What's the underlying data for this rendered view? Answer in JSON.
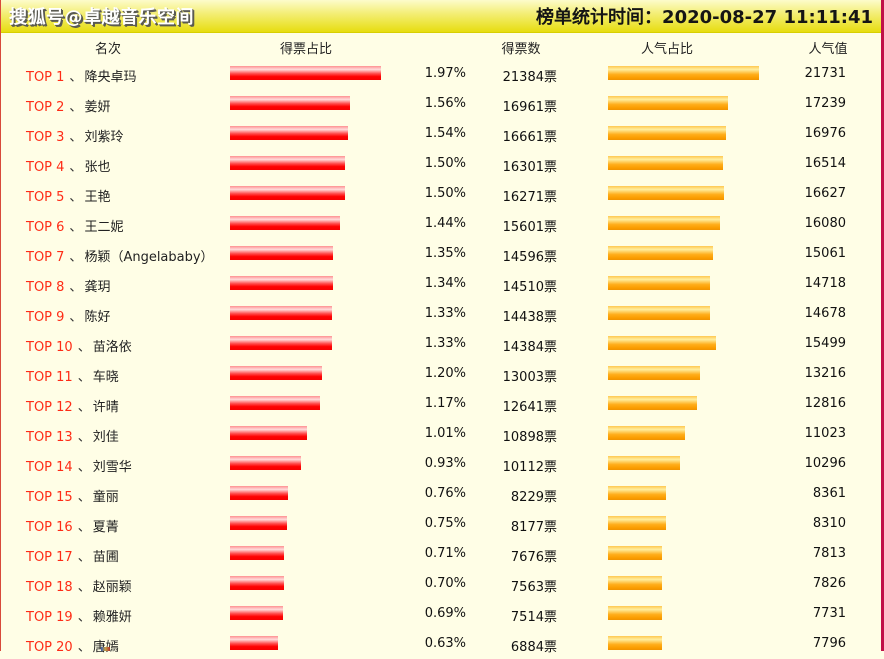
{
  "header": {
    "title": "搜狐号@卓越音乐空间",
    "stats_time": "榜单统计时间：2020-08-27 11:11:41"
  },
  "columns": {
    "rank": "名次",
    "vote_pct": "得票占比",
    "votes": "得票数",
    "pop_pct": "人气占比",
    "pop_value": "人气值"
  },
  "separator": "、",
  "colors": {
    "topbar_yellow": "#e7dd10",
    "background": "#fffee6",
    "rank_red": "#fe2c16",
    "vote_bar_red": "#ff0000",
    "pop_bar_orange": "#ffa500",
    "right_border": "#c01048"
  },
  "rows": [
    {
      "rank_label": "TOP 1",
      "name": "降央卓玛",
      "vote_pct_label": "1.97%",
      "votes_label": "21384票",
      "pop_value": 21731
    },
    {
      "rank_label": "TOP 2",
      "name": "姜妍",
      "vote_pct_label": "1.56%",
      "votes_label": "16961票",
      "pop_value": 17239
    },
    {
      "rank_label": "TOP 3",
      "name": "刘紫玲",
      "vote_pct_label": "1.54%",
      "votes_label": "16661票",
      "pop_value": 16976
    },
    {
      "rank_label": "TOP 4",
      "name": "张也",
      "vote_pct_label": "1.50%",
      "votes_label": "16301票",
      "pop_value": 16514
    },
    {
      "rank_label": "TOP 5",
      "name": "王艳",
      "vote_pct_label": "1.50%",
      "votes_label": "16271票",
      "pop_value": 16627
    },
    {
      "rank_label": "TOP 6",
      "name": "王二妮",
      "vote_pct_label": "1.44%",
      "votes_label": "15601票",
      "pop_value": 16080
    },
    {
      "rank_label": "TOP 7",
      "name": "杨颖（Angelababy）",
      "vote_pct_label": "1.35%",
      "votes_label": "14596票",
      "pop_value": 15061
    },
    {
      "rank_label": "TOP 8",
      "name": "龚玥",
      "vote_pct_label": "1.34%",
      "votes_label": "14510票",
      "pop_value": 14718
    },
    {
      "rank_label": "TOP 9",
      "name": "陈好",
      "vote_pct_label": "1.33%",
      "votes_label": "14438票",
      "pop_value": 14678
    },
    {
      "rank_label": "TOP 10",
      "name": "苗洛依",
      "vote_pct_label": "1.33%",
      "votes_label": "14384票",
      "pop_value": 15499
    },
    {
      "rank_label": "TOP 11",
      "name": "车晓",
      "vote_pct_label": "1.20%",
      "votes_label": "13003票",
      "pop_value": 13216
    },
    {
      "rank_label": "TOP 12",
      "name": "许晴",
      "vote_pct_label": "1.17%",
      "votes_label": "12641票",
      "pop_value": 12816
    },
    {
      "rank_label": "TOP 13",
      "name": "刘佳",
      "vote_pct_label": "1.01%",
      "votes_label": "10898票",
      "pop_value": 11023
    },
    {
      "rank_label": "TOP 14",
      "name": "刘雪华",
      "vote_pct_label": "0.93%",
      "votes_label": "10112票",
      "pop_value": 10296
    },
    {
      "rank_label": "TOP 15",
      "name": "童丽",
      "vote_pct_label": "0.76%",
      "votes_label": "8229票",
      "pop_value": 8361
    },
    {
      "rank_label": "TOP 16",
      "name": "夏菁",
      "vote_pct_label": "0.75%",
      "votes_label": "8177票",
      "pop_value": 8310
    },
    {
      "rank_label": "TOP 17",
      "name": "苗圃",
      "vote_pct_label": "0.71%",
      "votes_label": "7676票",
      "pop_value": 7813
    },
    {
      "rank_label": "TOP 18",
      "name": "赵丽颖",
      "vote_pct_label": "0.70%",
      "votes_label": "7563票",
      "pop_value": 7826
    },
    {
      "rank_label": "TOP 19",
      "name": "赖雅妍",
      "vote_pct_label": "0.69%",
      "votes_label": "7514票",
      "pop_value": 7731
    },
    {
      "rank_label": "TOP 20",
      "name": "唐嫣",
      "vote_pct_label": "0.63%",
      "votes_label": "6884票",
      "pop_value": 7796
    }
  ],
  "chart_data": {
    "type": "bar",
    "title": "榜单统计时间：2020-08-27 11:11:41",
    "categories": [
      "降央卓玛",
      "姜妍",
      "刘紫玲",
      "张也",
      "王艳",
      "王二妮",
      "杨颖（Angelababy）",
      "龚玥",
      "陈好",
      "苗洛依",
      "车晓",
      "许晴",
      "刘佳",
      "刘雪华",
      "童丽",
      "夏菁",
      "苗圃",
      "赵丽颖",
      "赖雅妍",
      "唐嫣"
    ],
    "series": [
      {
        "name": "得票占比(%)",
        "values": [
          1.97,
          1.56,
          1.54,
          1.5,
          1.5,
          1.44,
          1.35,
          1.34,
          1.33,
          1.33,
          1.2,
          1.17,
          1.01,
          0.93,
          0.76,
          0.75,
          0.71,
          0.7,
          0.69,
          0.63
        ]
      },
      {
        "name": "得票数",
        "values": [
          21384,
          16961,
          16661,
          16301,
          16271,
          15601,
          14596,
          14510,
          14438,
          14384,
          13003,
          12641,
          10898,
          10112,
          8229,
          8177,
          7676,
          7563,
          7514,
          6884
        ]
      },
      {
        "name": "人气值",
        "values": [
          21731,
          17239,
          16976,
          16514,
          16627,
          16080,
          15061,
          14718,
          14678,
          15499,
          13216,
          12816,
          11023,
          10296,
          8361,
          8310,
          7813,
          7826,
          7731,
          7796
        ]
      }
    ],
    "xlabel": "名次",
    "ylabel": "",
    "legend_position": "column-headers",
    "grid": false,
    "orientation": "horizontal"
  }
}
